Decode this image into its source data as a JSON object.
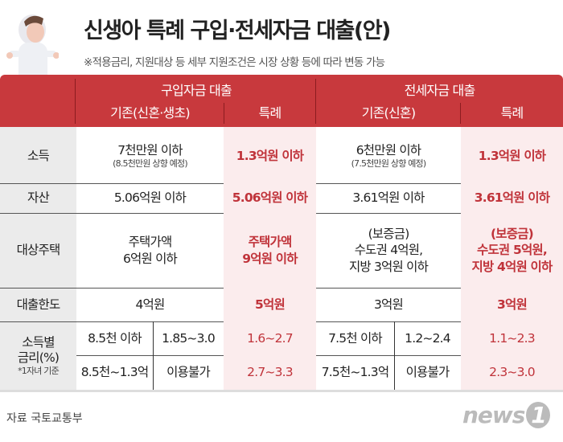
{
  "title": "신생아 특례 구입·전세자금 대출(안)",
  "subtitle": "※적용금리, 지원대상 등 세부 지원조건은 시장 상황 등에 따라 변동 가능",
  "header": {
    "purchase": "구입자금 대출",
    "jeonse": "전세자금 대출",
    "purchase_base": "기존(신혼·생초)",
    "purchase_special": "특례",
    "jeonse_base": "기존(신혼)",
    "jeonse_special": "특례"
  },
  "rows": {
    "income": {
      "label": "소득",
      "pb": "7천만원 이하",
      "pb_note": "(8.5천만원 상향 예정)",
      "ps": "1.3억원 이하",
      "jb": "6천만원 이하",
      "jb_note": "(7.5천만원 상향 예정)",
      "js": "1.3억원 이하"
    },
    "assets": {
      "label": "자산",
      "pb": "5.06억원 이하",
      "ps": "5.06억원 이하",
      "jb": "3.61억원 이하",
      "js": "3.61억원 이하"
    },
    "housing": {
      "label": "대상주택",
      "pb": [
        "주택가액",
        "6억원 이하"
      ],
      "ps": [
        "주택가액",
        "9억원 이하"
      ],
      "jb": [
        "(보증금)",
        "수도권 4억원,",
        "지방 3억원 이하"
      ],
      "js": [
        "(보증금)",
        "수도권 5억원,",
        "지방 4억원 이하"
      ]
    },
    "limit": {
      "label": "대출한도",
      "pb": "4억원",
      "ps": "5억원",
      "jb": "3억원",
      "js": "3억원"
    },
    "rate": {
      "label1": "소득별",
      "label2": "금리(%)",
      "label_note": "*1자녀 기준",
      "r1": {
        "pb_income": "8.5천 이하",
        "pb_rate": "1.85~3.0",
        "ps": "1.6~2.7",
        "jb_income": "7.5천 이하",
        "jb_rate": "1.2~2.4",
        "js": "1.1~2.3"
      },
      "r2": {
        "pb_income": "8.5천~1.3억",
        "pb_rate": "이용불가",
        "ps": "2.7~3.3",
        "jb_income": "7.5천~1.3억",
        "jb_rate": "이용불가",
        "js": "2.3~3.0"
      }
    }
  },
  "source": "자료  국토교통부",
  "logo": "news1",
  "colors": {
    "header": "#c8393d",
    "special_text": "#c0333a",
    "special_bg": "#fbeced"
  }
}
